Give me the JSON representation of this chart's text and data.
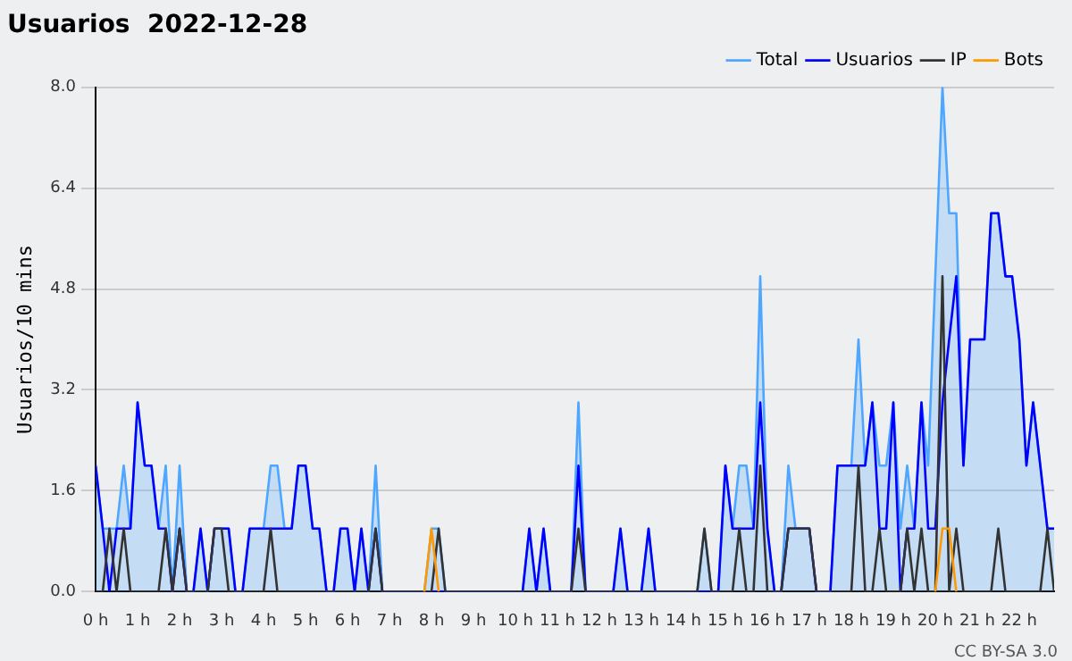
{
  "chart_data": {
    "type": "line",
    "title": "Usuarios  2022-12-28",
    "ylabel": "Usuarios/10 mins",
    "annotations": [
      "CC BY-SA 3.0"
    ],
    "x": [
      0,
      0.17,
      0.33,
      0.5,
      0.67,
      0.83,
      1,
      1.17,
      1.33,
      1.5,
      1.67,
      1.83,
      2,
      2.17,
      2.33,
      2.5,
      2.67,
      2.83,
      3,
      3.17,
      3.33,
      3.5,
      3.67,
      3.83,
      4,
      4.17,
      4.33,
      4.5,
      4.67,
      4.83,
      5,
      5.17,
      5.33,
      5.5,
      5.67,
      5.83,
      6,
      6.17,
      6.33,
      6.5,
      6.67,
      6.83,
      7,
      7.17,
      7.33,
      7.5,
      7.67,
      7.83,
      8,
      8.17,
      8.33,
      8.5,
      8.67,
      8.83,
      9,
      9.17,
      9.33,
      9.5,
      9.67,
      9.83,
      10,
      10.17,
      10.33,
      10.5,
      10.67,
      10.83,
      11,
      11.17,
      11.33,
      11.5,
      11.67,
      11.83,
      12,
      12.17,
      12.33,
      12.5,
      12.67,
      12.83,
      13,
      13.17,
      13.33,
      13.5,
      13.67,
      13.83,
      14,
      14.17,
      14.33,
      14.5,
      14.67,
      14.83,
      15,
      15.17,
      15.33,
      15.5,
      15.67,
      15.83,
      16,
      16.17,
      16.33,
      16.5,
      16.67,
      16.83,
      17,
      17.17,
      17.33,
      17.5,
      17.67,
      17.83,
      18,
      18.17,
      18.33,
      18.5,
      18.67,
      18.83,
      19,
      19.17,
      19.33,
      19.5,
      19.67,
      19.83,
      20,
      20.17,
      20.33,
      20.5,
      20.67,
      20.83,
      21,
      21.17,
      21.33,
      21.5,
      21.67,
      21.83,
      22,
      22.17,
      22.33,
      22.5,
      22.67,
      22.83
    ],
    "series": [
      {
        "name": "Total",
        "type": "area",
        "color": "#4da6ff",
        "values": [
          2,
          1,
          1,
          1,
          2,
          1,
          3,
          2,
          2,
          1,
          2,
          0,
          2,
          0,
          0,
          1,
          0,
          1,
          1,
          1,
          0,
          0,
          1,
          1,
          1,
          2,
          2,
          1,
          1,
          2,
          2,
          1,
          1,
          0,
          0,
          1,
          1,
          0,
          1,
          0,
          2,
          0,
          0,
          0,
          0,
          0,
          0,
          0,
          1,
          1,
          0,
          0,
          0,
          0,
          0,
          0,
          0,
          0,
          0,
          0,
          0,
          0,
          1,
          0,
          1,
          0,
          0,
          0,
          0,
          3,
          0,
          0,
          0,
          0,
          0,
          1,
          0,
          0,
          0,
          1,
          0,
          0,
          0,
          0,
          0,
          0,
          0,
          1,
          0,
          0,
          2,
          1,
          2,
          2,
          1,
          5,
          1,
          0,
          0,
          2,
          1,
          1,
          1,
          0,
          0,
          0,
          2,
          2,
          2,
          4,
          2,
          3,
          2,
          2,
          3,
          1,
          2,
          1,
          3,
          2,
          5,
          8,
          6,
          6,
          2,
          4,
          4,
          4,
          6,
          6,
          5,
          5,
          4,
          2,
          3,
          2,
          1,
          1
        ]
      },
      {
        "name": "Usuarios",
        "type": "line",
        "color": "#0000ff",
        "values": [
          2,
          1,
          0,
          1,
          1,
          1,
          3,
          2,
          2,
          1,
          1,
          0,
          1,
          0,
          0,
          1,
          0,
          1,
          1,
          1,
          0,
          0,
          1,
          1,
          1,
          1,
          1,
          1,
          1,
          2,
          2,
          1,
          1,
          0,
          0,
          1,
          1,
          0,
          1,
          0,
          1,
          0,
          0,
          0,
          0,
          0,
          0,
          0,
          0,
          0,
          0,
          0,
          0,
          0,
          0,
          0,
          0,
          0,
          0,
          0,
          0,
          0,
          1,
          0,
          1,
          0,
          0,
          0,
          0,
          2,
          0,
          0,
          0,
          0,
          0,
          1,
          0,
          0,
          0,
          1,
          0,
          0,
          0,
          0,
          0,
          0,
          0,
          0,
          0,
          0,
          2,
          1,
          1,
          1,
          1,
          3,
          1,
          0,
          0,
          1,
          1,
          1,
          1,
          0,
          0,
          0,
          2,
          2,
          2,
          2,
          2,
          3,
          1,
          1,
          3,
          0,
          1,
          1,
          3,
          1,
          1,
          3,
          4,
          5,
          2,
          4,
          4,
          4,
          6,
          6,
          5,
          5,
          4,
          2,
          3,
          2,
          1,
          1
        ]
      },
      {
        "name": "IP",
        "type": "line",
        "color": "#333333",
        "values": [
          0,
          0,
          1,
          0,
          1,
          0,
          0,
          0,
          0,
          0,
          1,
          0,
          1,
          0,
          0,
          0,
          0,
          1,
          1,
          0,
          0,
          0,
          0,
          0,
          0,
          1,
          0,
          0,
          0,
          0,
          0,
          0,
          0,
          0,
          0,
          0,
          0,
          0,
          0,
          0,
          1,
          0,
          0,
          0,
          0,
          0,
          0,
          0,
          0,
          1,
          0,
          0,
          0,
          0,
          0,
          0,
          0,
          0,
          0,
          0,
          0,
          0,
          0,
          0,
          0,
          0,
          0,
          0,
          0,
          1,
          0,
          0,
          0,
          0,
          0,
          0,
          0,
          0,
          0,
          0,
          0,
          0,
          0,
          0,
          0,
          0,
          0,
          1,
          0,
          0,
          0,
          0,
          1,
          0,
          0,
          2,
          0,
          0,
          0,
          1,
          1,
          1,
          1,
          0,
          0,
          0,
          0,
          0,
          0,
          2,
          0,
          0,
          1,
          0,
          0,
          0,
          1,
          0,
          1,
          0,
          0,
          5,
          0,
          1,
          0,
          0,
          0,
          0,
          0,
          1,
          0,
          0,
          0,
          0,
          0,
          0,
          1,
          0
        ]
      },
      {
        "name": "Bots",
        "type": "line",
        "color": "#ff9900",
        "values": [
          null,
          null,
          null,
          null,
          null,
          null,
          null,
          null,
          null,
          null,
          null,
          null,
          null,
          null,
          null,
          null,
          null,
          null,
          null,
          null,
          null,
          null,
          null,
          null,
          null,
          null,
          null,
          null,
          null,
          null,
          null,
          null,
          null,
          null,
          null,
          null,
          null,
          null,
          null,
          null,
          null,
          null,
          null,
          null,
          null,
          null,
          null,
          0,
          1,
          0,
          null,
          null,
          null,
          null,
          null,
          null,
          null,
          null,
          null,
          null,
          null,
          null,
          null,
          null,
          null,
          null,
          null,
          null,
          null,
          null,
          null,
          null,
          null,
          null,
          null,
          null,
          null,
          null,
          null,
          null,
          null,
          null,
          null,
          null,
          null,
          null,
          null,
          null,
          null,
          null,
          null,
          null,
          null,
          null,
          null,
          null,
          null,
          null,
          null,
          null,
          null,
          null,
          null,
          null,
          null,
          null,
          null,
          null,
          null,
          null,
          null,
          null,
          null,
          null,
          null,
          null,
          null,
          null,
          null,
          null,
          0,
          1,
          1,
          0,
          null,
          null,
          null,
          null,
          null,
          null,
          null,
          null,
          null,
          null,
          null,
          null,
          null,
          null
        ]
      }
    ],
    "xlim": [
      0,
      22.83
    ],
    "xticks": [
      {
        "value": 0,
        "label": "0 h"
      },
      {
        "value": 1,
        "label": "1 h"
      },
      {
        "value": 2,
        "label": "2 h"
      },
      {
        "value": 3,
        "label": "3 h"
      },
      {
        "value": 4,
        "label": "4 h"
      },
      {
        "value": 5,
        "label": "5 h"
      },
      {
        "value": 6,
        "label": "6 h"
      },
      {
        "value": 7,
        "label": "7 h"
      },
      {
        "value": 8,
        "label": "8 h"
      },
      {
        "value": 9,
        "label": "9 h"
      },
      {
        "value": 10,
        "label": "10 h"
      },
      {
        "value": 11,
        "label": "11 h"
      },
      {
        "value": 12,
        "label": "12 h"
      },
      {
        "value": 13,
        "label": "13 h"
      },
      {
        "value": 14,
        "label": "14 h"
      },
      {
        "value": 15,
        "label": "15 h"
      },
      {
        "value": 16,
        "label": "16 h"
      },
      {
        "value": 17,
        "label": "17 h"
      },
      {
        "value": 18,
        "label": "18 h"
      },
      {
        "value": 19,
        "label": "19 h"
      },
      {
        "value": 20,
        "label": "20 h"
      },
      {
        "value": 21,
        "label": "21 h"
      },
      {
        "value": 22,
        "label": "22 h"
      }
    ],
    "ylim": [
      0,
      8
    ],
    "yticks": [
      {
        "value": 0,
        "label": "0.0"
      },
      1.6,
      3.2,
      4.8,
      6.4,
      {
        "value": 8,
        "label": "8.0"
      }
    ],
    "grid": "y",
    "legend": "top right",
    "marker": "none"
  }
}
